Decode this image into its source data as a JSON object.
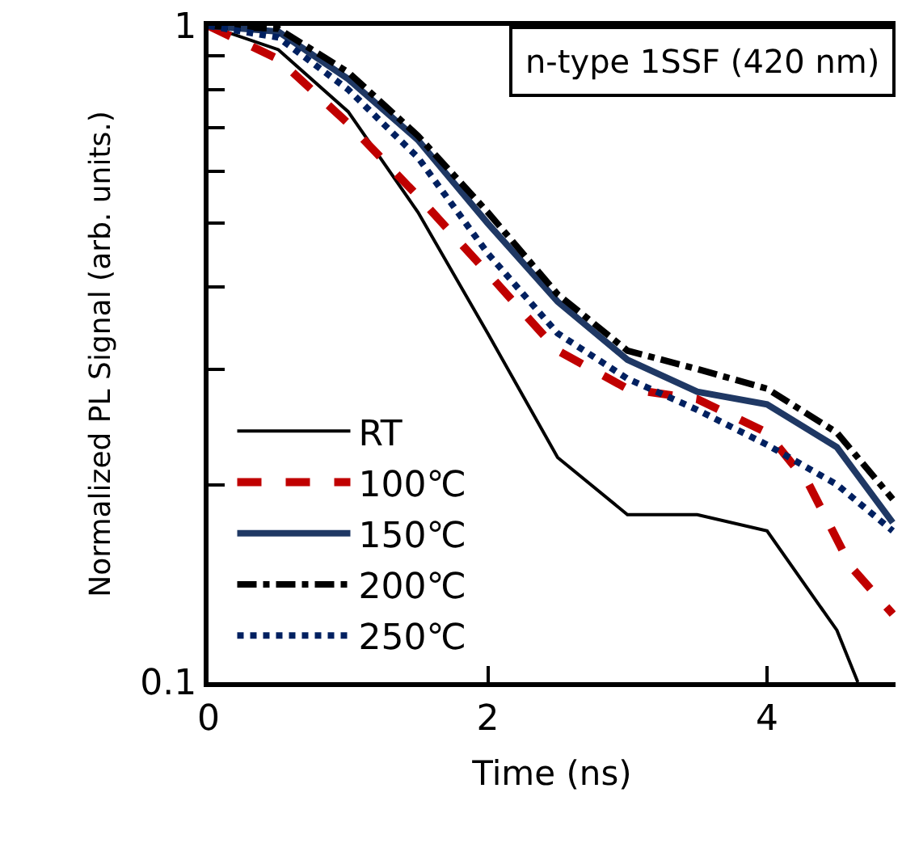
{
  "chart_data": {
    "type": "line",
    "xlabel": "Time (ns)",
    "ylabel": "Normalized PL Signal (arb. units.)",
    "log": "y",
    "xlim": [
      0,
      4.92
    ],
    "xticks": [
      0,
      2,
      4
    ],
    "ylim": [
      0.1,
      1
    ],
    "yticks": [
      0.1,
      {
        "value": 0.2,
        "label": null
      },
      {
        "value": 0.3,
        "label": null
      },
      {
        "value": 0.4,
        "label": null
      },
      {
        "value": 0.5,
        "label": null
      },
      {
        "value": 0.6,
        "label": null
      },
      {
        "value": 0.7,
        "label": null
      },
      {
        "value": 0.8,
        "label": null
      },
      {
        "value": 0.9,
        "label": null
      },
      1
    ],
    "legend": "bottom left",
    "marker": "none",
    "annotations": [
      "n-type 1SSF (420 nm)"
    ],
    "series": [
      {
        "name": "RT",
        "color": "#000000",
        "line_style": "solid",
        "x": [
          0,
          0.5,
          1,
          1.5,
          2,
          2.5,
          3,
          3.5,
          4,
          4.5,
          4.65
        ],
        "values": [
          1,
          0.92,
          0.74,
          0.52,
          0.34,
          0.22,
          0.18,
          0.18,
          0.17,
          0.12,
          0.1
        ]
      },
      {
        "name": "100℃",
        "color": "#c00000",
        "line_style": "dashed",
        "x": [
          0,
          0.5,
          1,
          1.5,
          2,
          2.5,
          3,
          3.5,
          4,
          4.3,
          4.6,
          4.9
        ],
        "values": [
          1,
          0.89,
          0.71,
          0.55,
          0.42,
          0.32,
          0.28,
          0.27,
          0.24,
          0.2,
          0.15,
          0.127
        ]
      },
      {
        "name": "150℃",
        "color": "#1f3864",
        "line_style": "solid",
        "x": [
          0,
          0.5,
          1,
          1.5,
          2,
          2.5,
          3,
          3.5,
          4,
          4.5,
          4.9
        ],
        "values": [
          1,
          0.98,
          0.83,
          0.67,
          0.5,
          0.38,
          0.31,
          0.277,
          0.265,
          0.228,
          0.175
        ]
      },
      {
        "name": "200℃",
        "color": "#000000",
        "line_style": "dashdot",
        "x": [
          0,
          0.5,
          1,
          1.5,
          2,
          2.5,
          3,
          3.5,
          4,
          4.5,
          4.9
        ],
        "values": [
          1,
          0.99,
          0.85,
          0.68,
          0.52,
          0.39,
          0.32,
          0.3,
          0.28,
          0.24,
          0.19
        ]
      },
      {
        "name": "250℃",
        "color": "#002060",
        "line_style": "dotted",
        "x": [
          0,
          0.5,
          1,
          1.5,
          2,
          2.5,
          3,
          3.5,
          4,
          4.5,
          4.9
        ],
        "values": [
          1,
          0.96,
          0.8,
          0.63,
          0.45,
          0.34,
          0.29,
          0.26,
          0.23,
          0.2,
          0.17
        ]
      }
    ]
  }
}
